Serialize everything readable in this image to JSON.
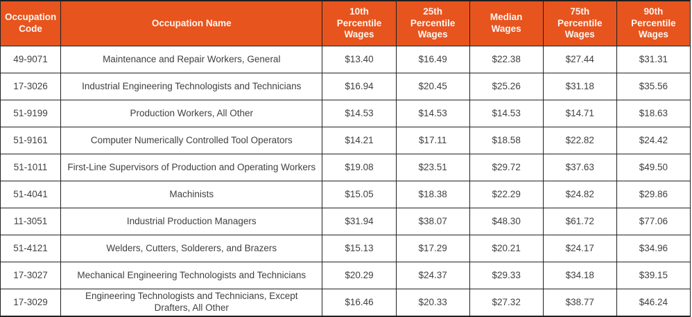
{
  "colors": {
    "header_bg": "#e7541e",
    "header_text": "#fdf7f3",
    "body_text": "#404040",
    "border": "#1f1f1f"
  },
  "table": {
    "columns": [
      "Occupation Code",
      "Occupation Name",
      "10th Percentile Wages",
      "25th Percentile Wages",
      "Median Wages",
      "75th Percentile Wages",
      "90th Percentile Wages"
    ],
    "rows": [
      {
        "code": "49-9071",
        "name": "Maintenance and Repair Workers, General",
        "wages": [
          "$13.40",
          "$16.49",
          "$22.38",
          "$27.44",
          "$31.31"
        ]
      },
      {
        "code": "17-3026",
        "name": "Industrial Engineering Technologists and Technicians",
        "wages": [
          "$16.94",
          "$20.45",
          "$25.26",
          "$31.18",
          "$35.56"
        ]
      },
      {
        "code": "51-9199",
        "name": "Production Workers, All Other",
        "wages": [
          "$14.53",
          "$14.53",
          "$14.53",
          "$14.71",
          "$18.63"
        ]
      },
      {
        "code": "51-9161",
        "name": "Computer Numerically Controlled Tool Operators",
        "wages": [
          "$14.21",
          "$17.11",
          "$18.58",
          "$22.82",
          "$24.42"
        ]
      },
      {
        "code": "51-1011",
        "name": "First-Line Supervisors of Production and Operating Workers",
        "wages": [
          "$19.08",
          "$23.51",
          "$29.72",
          "$37.63",
          "$49.50"
        ]
      },
      {
        "code": "51-4041",
        "name": "Machinists",
        "wages": [
          "$15.05",
          "$18.38",
          "$22.29",
          "$24.82",
          "$29.86"
        ]
      },
      {
        "code": "11-3051",
        "name": "Industrial Production Managers",
        "wages": [
          "$31.94",
          "$38.07",
          "$48.30",
          "$61.72",
          "$77.06"
        ]
      },
      {
        "code": "51-4121",
        "name": "Welders, Cutters, Solderers, and Brazers",
        "wages": [
          "$15.13",
          "$17.29",
          "$20.21",
          "$24.17",
          "$34.96"
        ]
      },
      {
        "code": "17-3027",
        "name": "Mechanical Engineering Technologists and Technicians",
        "wages": [
          "$20.29",
          "$24.37",
          "$29.33",
          "$34.18",
          "$39.15"
        ]
      },
      {
        "code": "17-3029",
        "name": "Engineering Technologists and Technicians, Except Drafters, All Other",
        "wages": [
          "$16.46",
          "$20.33",
          "$27.32",
          "$38.77",
          "$46.24"
        ]
      }
    ]
  }
}
